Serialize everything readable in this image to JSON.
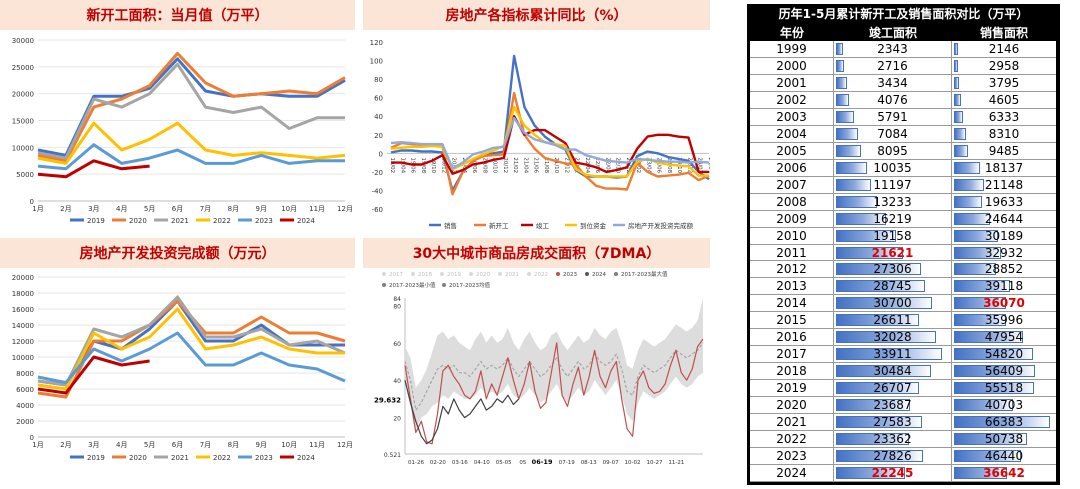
{
  "panels": {
    "p1_title": "新开工面积：当月值（万平）",
    "p2_title": "房地产各指标累计同比（%）",
    "p3_title": "房地产开发投资完成额（万元）",
    "p4_title": "30大中城市商品房成交面积（7DMA）"
  },
  "chart_data": [
    {
      "type": "line",
      "title": "新开工面积：当月值（万平）",
      "x": [
        "1月",
        "2月",
        "3月",
        "4月",
        "5月",
        "6月",
        "7月",
        "8月",
        "9月",
        "10月",
        "11月",
        "12月"
      ],
      "ylim": [
        0,
        30000
      ],
      "yticks": [
        0,
        5000,
        10000,
        15000,
        20000,
        25000,
        30000
      ],
      "legend": "bottom",
      "series": [
        {
          "name": "2019",
          "color": "#4472c4",
          "values": [
            9500,
            8500,
            19500,
            19500,
            21000,
            26500,
            20500,
            19500,
            20000,
            19500,
            19500,
            22500
          ]
        },
        {
          "name": "2020",
          "color": "#ed7d31",
          "values": [
            8500,
            7500,
            17500,
            19000,
            21500,
            27500,
            22000,
            19500,
            20000,
            20500,
            20000,
            23000
          ]
        },
        {
          "name": "2021",
          "color": "#a5a5a5",
          "values": [
            9000,
            8000,
            19000,
            17500,
            20000,
            25500,
            17500,
            16500,
            17500,
            13500,
            15500,
            15500
          ]
        },
        {
          "name": "2022",
          "color": "#ffc000",
          "values": [
            8000,
            7000,
            14500,
            9500,
            11500,
            14500,
            9500,
            8500,
            9000,
            8500,
            8000,
            8500
          ]
        },
        {
          "name": "2023",
          "color": "#5b9bd5",
          "values": [
            6500,
            6000,
            10500,
            7000,
            8000,
            9500,
            7000,
            7000,
            8500,
            7000,
            7500,
            7500
          ]
        },
        {
          "name": "2024",
          "color": "#c00000",
          "values": [
            5000,
            4500,
            7500,
            6000,
            6500,
            null,
            null,
            null,
            null,
            null,
            null,
            null
          ]
        }
      ]
    },
    {
      "type": "line",
      "title": "房地产各指标累计同比（%）",
      "ylim": [
        -60,
        120
      ],
      "yticks": [
        -60,
        -40,
        -20,
        0,
        20,
        40,
        60,
        80,
        100,
        120
      ],
      "xticks": [
        "19/02",
        "19/04",
        "19/06",
        "19/08",
        "19/10",
        "19/12",
        "20/02",
        "20/04",
        "20/06",
        "20/08",
        "20/10",
        "20/12",
        "21/02",
        "21/04",
        "21/06",
        "21/08",
        "21/10",
        "21/12",
        "22/02",
        "22/04",
        "22/06",
        "22/08",
        "22/10",
        "22/12",
        "23/02",
        "23/04",
        "23/06",
        "23/08",
        "23/10",
        "23/12",
        "24/02",
        "24/04"
      ],
      "legend": "bottom",
      "series": [
        {
          "name": "销售",
          "color": "#4472c4",
          "values": [
            1,
            3,
            3,
            2,
            2,
            1,
            -40,
            -20,
            -8,
            -2,
            0,
            2,
            105,
            50,
            30,
            18,
            10,
            4,
            -18,
            -25,
            -25,
            -25,
            -26,
            -25,
            -3,
            2,
            0,
            -4,
            -6,
            -8,
            -20,
            -28
          ]
        },
        {
          "name": "新开工",
          "color": "#ed7d31",
          "values": [
            6,
            11,
            10,
            9,
            8,
            8,
            -44,
            -20,
            -8,
            -3,
            -2,
            -1,
            65,
            20,
            5,
            -5,
            -8,
            -11,
            -12,
            -25,
            -35,
            -38,
            -38,
            -39,
            -10,
            -20,
            -25,
            -24,
            -23,
            -21,
            -29,
            -24
          ]
        },
        {
          "name": "竣工",
          "color": "#c00000",
          "values": [
            -10,
            -10,
            -12,
            -12,
            -8,
            -2,
            -22,
            -18,
            -12,
            -10,
            -7,
            -5,
            40,
            20,
            25,
            25,
            18,
            11,
            -10,
            -12,
            -15,
            -20,
            -18,
            -15,
            5,
            18,
            20,
            20,
            18,
            17,
            -20,
            -20
          ]
        },
        {
          "name": "到位资金",
          "color": "#ffc000",
          "values": [
            5,
            6,
            7,
            7,
            8,
            7,
            -17,
            -12,
            -6,
            -1,
            3,
            8,
            50,
            30,
            20,
            12,
            10,
            8,
            -17,
            -23,
            -25,
            -25,
            -25,
            -25,
            -9,
            -6,
            -10,
            -12,
            -13,
            -14,
            -24,
            -24
          ]
        },
        {
          "name": "房地产开发投资完成额",
          "color": "#8faadc",
          "values": [
            11,
            12,
            11,
            10,
            10,
            10,
            -16,
            -10,
            -1,
            2,
            6,
            7,
            38,
            22,
            15,
            12,
            9,
            4,
            4,
            -2,
            -5,
            -8,
            -9,
            -10,
            -6,
            -7,
            -8,
            -9,
            -9,
            -10,
            -9,
            -10
          ]
        }
      ]
    },
    {
      "type": "line",
      "title": "房地产开发投资完成额（万元）",
      "x": [
        "1月",
        "2月",
        "3月",
        "4月",
        "5月",
        "6月",
        "7月",
        "8月",
        "9月",
        "10月",
        "11月",
        "12月"
      ],
      "ylim": [
        0,
        20000
      ],
      "yticks": [
        0,
        2000,
        4000,
        6000,
        8000,
        10000,
        12000,
        14000,
        16000,
        18000,
        20000
      ],
      "legend": "bottom",
      "series": [
        {
          "name": "2019",
          "color": "#4472c4",
          "values": [
            7000,
            6500,
            12000,
            11000,
            13500,
            17000,
            12000,
            12000,
            14000,
            11500,
            11500,
            11500
          ]
        },
        {
          "name": "2020",
          "color": "#ed7d31",
          "values": [
            5500,
            5000,
            12000,
            12000,
            14000,
            17000,
            13000,
            13000,
            15000,
            13000,
            13000,
            12000
          ]
        },
        {
          "name": "2021",
          "color": "#a5a5a5",
          "values": [
            7000,
            6500,
            13500,
            12500,
            14000,
            17500,
            12500,
            12500,
            13500,
            11500,
            12000,
            10500
          ]
        },
        {
          "name": "2022",
          "color": "#ffc000",
          "values": [
            6500,
            6000,
            13000,
            11000,
            12500,
            16000,
            11000,
            11500,
            12500,
            11000,
            10500,
            10500
          ]
        },
        {
          "name": "2023",
          "color": "#5b9bd5",
          "values": [
            7500,
            6800,
            11000,
            9500,
            11000,
            13000,
            9000,
            9000,
            10500,
            9000,
            8500,
            7000
          ]
        },
        {
          "name": "2024",
          "color": "#c00000",
          "values": [
            6000,
            5500,
            10000,
            9000,
            9500,
            null,
            null,
            null,
            null,
            null,
            null,
            null
          ]
        }
      ]
    },
    {
      "type": "area",
      "title": "30大中城市商品房成交面积（7DMA）",
      "legend_entries": [
        "2017",
        "2018",
        "2019",
        "2020",
        "2021",
        "2022",
        "2023",
        "2024",
        "2017-2023最大值",
        "2017-2023最小值",
        "2017-2023均值"
      ],
      "yticks": [
        "84",
        "80",
        "60",
        "40",
        "20",
        "0.521"
      ],
      "annotation": "29.632",
      "xticks": [
        "01-26",
        "02-20",
        "03-16",
        "04-10",
        "05-05",
        "05",
        "06-19",
        "07-19",
        "08-13",
        "09-07",
        "10-02",
        "10-27",
        "11-21"
      ],
      "series": [
        {
          "name": "2023",
          "color": "#c0504d",
          "values": [
            48,
            30,
            12,
            18,
            7,
            6,
            22,
            45,
            48,
            42,
            38,
            32,
            30,
            34,
            45,
            30,
            38,
            32,
            42,
            52,
            40,
            30,
            38,
            50,
            34,
            25,
            28,
            44,
            60,
            32,
            26,
            38,
            47,
            32,
            42,
            56,
            42,
            36,
            45,
            50,
            30,
            14,
            10,
            40,
            45,
            36,
            33,
            34,
            38,
            48,
            56,
            44,
            40,
            46,
            58,
            62
          ]
        },
        {
          "name": "2024",
          "color": "#595959",
          "values": [
            40,
            28,
            18,
            10,
            6,
            8,
            14,
            26,
            22,
            30,
            24,
            20,
            22,
            26,
            30,
            24,
            26,
            30,
            28,
            32,
            27,
            30
          ]
        },
        {
          "name": "2017-2023最大值",
          "color": "#d9d9d9",
          "values": [
            58,
            52,
            36,
            40,
            46,
            55,
            64,
            66,
            62,
            64,
            60,
            58,
            56,
            62,
            66,
            60,
            64,
            60,
            62,
            68,
            60,
            56,
            62,
            66,
            60,
            56,
            58,
            64,
            66,
            60,
            56,
            60,
            64,
            60,
            62,
            68,
            64,
            62,
            66,
            68,
            60,
            48,
            46,
            56,
            62,
            60,
            58,
            60,
            62,
            66,
            70,
            68,
            66,
            68,
            72,
            84
          ]
        },
        {
          "name": "2017-2023最小值",
          "color": "#d9d9d9",
          "values": [
            42,
            30,
            14,
            20,
            22,
            26,
            28,
            32,
            30,
            34,
            32,
            30,
            30,
            32,
            36,
            32,
            34,
            32,
            34,
            38,
            32,
            30,
            32,
            36,
            32,
            28,
            30,
            34,
            38,
            32,
            28,
            32,
            36,
            32,
            34,
            40,
            36,
            32,
            36,
            40,
            32,
            22,
            18,
            28,
            34,
            32,
            30,
            32,
            34,
            38,
            42,
            38,
            36,
            38,
            42,
            44
          ]
        },
        {
          "name": "2017-2023均值",
          "color": "#a6a6a6",
          "values": [
            50,
            40,
            24,
            28,
            34,
            40,
            46,
            48,
            46,
            48,
            44,
            44,
            42,
            46,
            50,
            46,
            48,
            46,
            48,
            52,
            46,
            42,
            46,
            50,
            46,
            42,
            44,
            48,
            52,
            46,
            42,
            46,
            50,
            46,
            48,
            54,
            50,
            48,
            50,
            54,
            46,
            34,
            32,
            42,
            48,
            46,
            44,
            46,
            48,
            52,
            56,
            54,
            52,
            54,
            56,
            60
          ]
        }
      ]
    },
    {
      "type": "table",
      "title": "历年1-5月累计新开工及销售面积对比（万平）",
      "columns": [
        "年份",
        "竣工面积",
        "销售面积"
      ],
      "rows": [
        [
          "1999",
          "2343",
          "2146"
        ],
        [
          "2000",
          "2716",
          "2958"
        ],
        [
          "2001",
          "3434",
          "3795"
        ],
        [
          "2002",
          "4076",
          "4605"
        ],
        [
          "2003",
          "5791",
          "6333"
        ],
        [
          "2004",
          "7084",
          "8310"
        ],
        [
          "2005",
          "8095",
          "9485"
        ],
        [
          "2006",
          "10035",
          "18137"
        ],
        [
          "2007",
          "11197",
          "21148"
        ],
        [
          "2008",
          "13233",
          "19633"
        ],
        [
          "2009",
          "16219",
          "24644"
        ],
        [
          "2010",
          "19158",
          "30189"
        ],
        [
          "2011",
          "21621",
          "32932"
        ],
        [
          "2012",
          "27306",
          "28852"
        ],
        [
          "2013",
          "28745",
          "39118"
        ],
        [
          "2014",
          "30700",
          "36070"
        ],
        [
          "2015",
          "26611",
          "35996"
        ],
        [
          "2016",
          "32028",
          "47954"
        ],
        [
          "2017",
          "33911",
          "54820"
        ],
        [
          "2018",
          "30484",
          "56409"
        ],
        [
          "2019",
          "26707",
          "55518"
        ],
        [
          "2020",
          "23687",
          "40703"
        ],
        [
          "2021",
          "27583",
          "66383"
        ],
        [
          "2022",
          "23362",
          "50738"
        ],
        [
          "2023",
          "27826",
          "46440"
        ],
        [
          "2024",
          "22245",
          "36642"
        ]
      ],
      "highlight": [
        [
          "2011",
          1
        ],
        [
          "2014",
          2
        ],
        [
          "2024",
          1
        ],
        [
          "2024",
          2
        ]
      ]
    }
  ]
}
